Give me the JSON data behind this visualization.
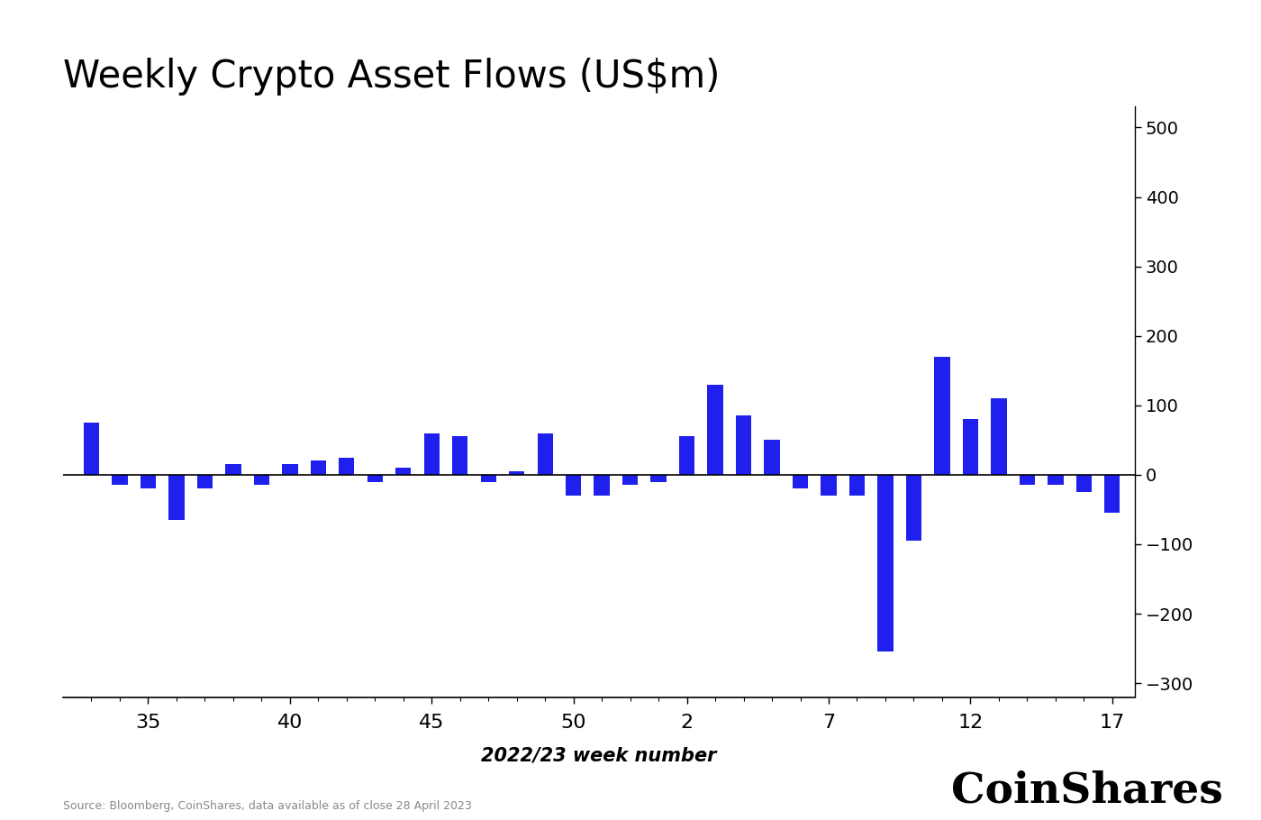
{
  "title": "Weekly Crypto Asset Flows (US$m)",
  "xlabel": "2022/23 week number",
  "bar_color": "#2020ee",
  "ylim": [
    -320,
    530
  ],
  "yticks": [
    -300,
    -200,
    -100,
    0,
    100,
    200,
    300,
    400,
    500
  ],
  "xtick_labels": [
    "35",
    "40",
    "45",
    "50",
    "2",
    "7",
    "12",
    "17"
  ],
  "source_text": "Source: Bloomberg, CoinShares, data available as of close 28 April 2023",
  "coinshares_text": "CoinShares",
  "week_numbers": [
    33,
    34,
    35,
    36,
    37,
    38,
    39,
    40,
    41,
    42,
    43,
    44,
    45,
    46,
    47,
    48,
    49,
    50,
    51,
    52,
    1,
    2,
    3,
    4,
    5,
    6,
    7,
    8,
    9,
    10,
    11,
    12,
    13,
    14,
    15,
    16,
    17
  ],
  "values": [
    75,
    -15,
    -20,
    -65,
    -20,
    15,
    -15,
    15,
    20,
    25,
    -10,
    10,
    60,
    55,
    -10,
    5,
    60,
    -30,
    -30,
    -15,
    -10,
    55,
    130,
    85,
    50,
    -20,
    -30,
    -30,
    -255,
    -95,
    170,
    80,
    110,
    -15,
    -15,
    -25,
    -55
  ]
}
